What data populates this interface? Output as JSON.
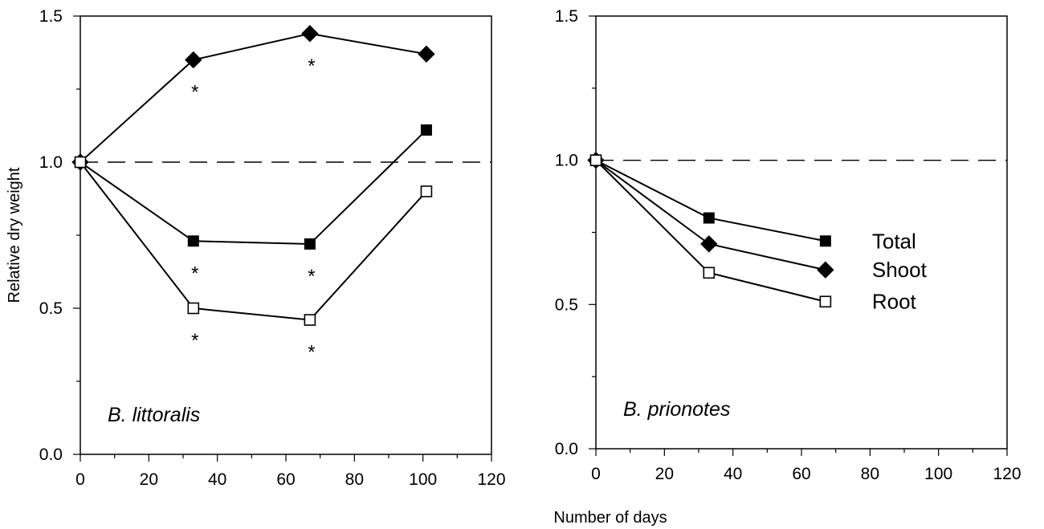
{
  "chart_data": [
    {
      "type": "line",
      "panel_label": "B. littoralis",
      "xlabel": "",
      "ylabel": "Relative dry weight",
      "xlim": [
        0,
        120
      ],
      "ylim": [
        0,
        1.5
      ],
      "x_ticks": [
        0,
        20,
        40,
        60,
        80,
        100,
        120
      ],
      "y_ticks": [
        0.0,
        0.5,
        1.0,
        1.5
      ],
      "y_tick_labels": [
        "0.0",
        "0.5",
        "1.0",
        "1.5"
      ],
      "reference_line": 1.0,
      "grid": false,
      "series": [
        {
          "name": "Total",
          "marker": "filled-square",
          "x": [
            0,
            33,
            67,
            101
          ],
          "y": [
            1.0,
            0.73,
            0.72,
            1.11
          ],
          "significant": [
            false,
            true,
            true,
            false
          ]
        },
        {
          "name": "Shoot",
          "marker": "filled-diamond",
          "x": [
            0,
            33,
            67,
            101
          ],
          "y": [
            1.0,
            1.35,
            1.44,
            1.37
          ],
          "significant": [
            false,
            true,
            true,
            false
          ]
        },
        {
          "name": "Root",
          "marker": "open-square",
          "x": [
            0,
            33,
            67,
            101
          ],
          "y": [
            1.0,
            0.5,
            0.46,
            0.9
          ],
          "significant": [
            false,
            true,
            true,
            false
          ]
        }
      ],
      "significance_symbol": "*"
    },
    {
      "type": "line",
      "panel_label": "B. prionotes",
      "xlabel": "",
      "ylabel": "",
      "xlim": [
        0,
        120
      ],
      "ylim": [
        0,
        1.5
      ],
      "x_ticks": [
        0,
        20,
        40,
        60,
        80,
        100,
        120
      ],
      "y_ticks": [
        0.0,
        0.5,
        1.0,
        1.5
      ],
      "y_tick_labels": [
        "0.0",
        "0.5",
        "1.0",
        "1.5"
      ],
      "reference_line": 1.0,
      "grid": false,
      "legend": {
        "placement": "right",
        "entries": [
          "Total",
          "Shoot",
          "Root"
        ]
      },
      "series": [
        {
          "name": "Total",
          "marker": "filled-square",
          "x": [
            0,
            33,
            67
          ],
          "y": [
            1.0,
            0.8,
            0.72
          ]
        },
        {
          "name": "Shoot",
          "marker": "filled-diamond",
          "x": [
            0,
            33,
            67
          ],
          "y": [
            1.0,
            0.71,
            0.62
          ]
        },
        {
          "name": "Root",
          "marker": "open-square",
          "x": [
            0,
            33,
            67
          ],
          "y": [
            1.0,
            0.61,
            0.51
          ]
        }
      ]
    }
  ],
  "shared_xlabel": "Number of days"
}
